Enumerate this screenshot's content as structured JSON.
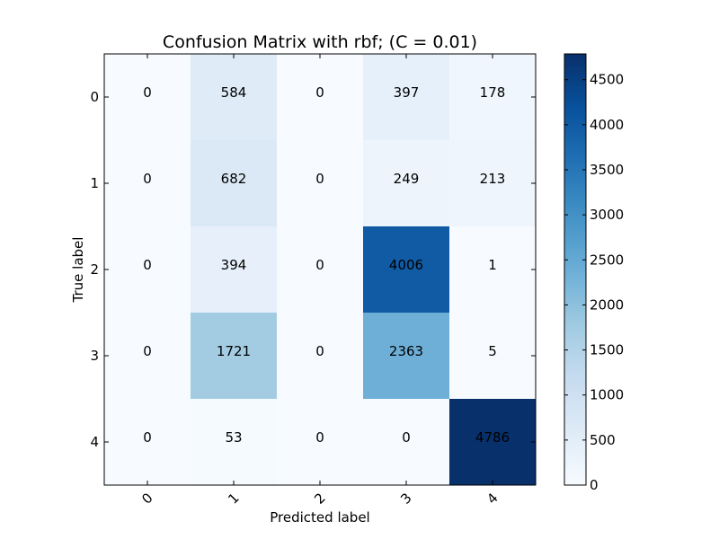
{
  "chart_data": {
    "type": "heatmap",
    "title": "Confusion Matrix with rbf; (C = 0.01)",
    "xlabel": "Predicted label",
    "ylabel": "True label",
    "x_tick_labels": [
      "0",
      "1",
      "2",
      "3",
      "4"
    ],
    "y_tick_labels": [
      "0",
      "1",
      "2",
      "3",
      "4"
    ],
    "matrix": [
      [
        0,
        584,
        0,
        397,
        178
      ],
      [
        0,
        682,
        0,
        249,
        213
      ],
      [
        0,
        394,
        0,
        4006,
        1
      ],
      [
        0,
        1721,
        0,
        2363,
        5
      ],
      [
        0,
        53,
        0,
        0,
        4786
      ]
    ],
    "colormap": "Blues",
    "colorbar": {
      "min": 0,
      "max": 4786,
      "ticks": [
        0,
        500,
        1000,
        1500,
        2000,
        2500,
        3000,
        3500,
        4000,
        4500
      ]
    },
    "grid": false
  }
}
